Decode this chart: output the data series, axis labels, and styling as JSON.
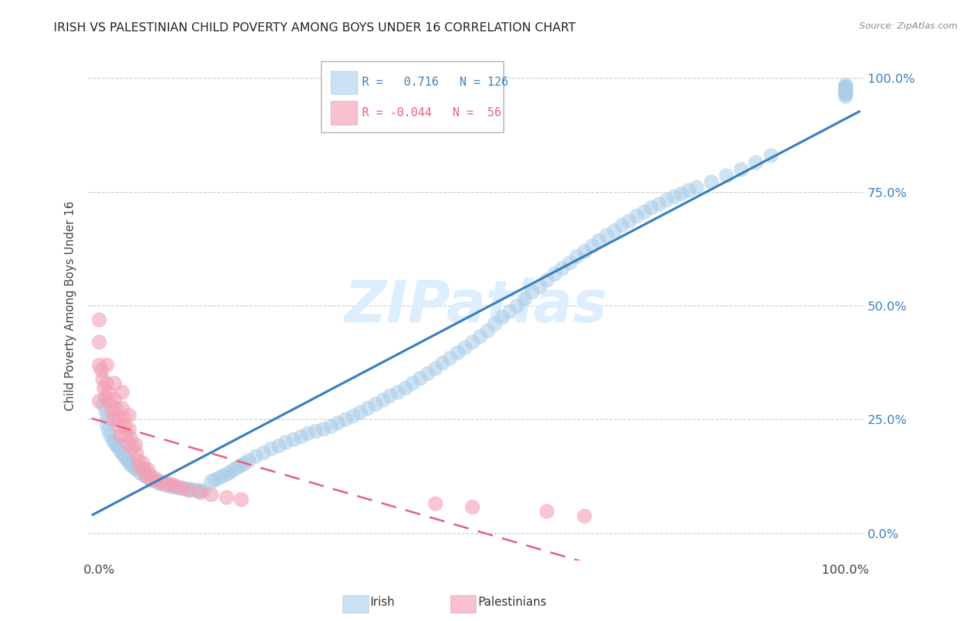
{
  "title": "IRISH VS PALESTINIAN CHILD POVERTY AMONG BOYS UNDER 16 CORRELATION CHART",
  "source": "Source: ZipAtlas.com",
  "ylabel": "Child Poverty Among Boys Under 16",
  "ytick_labels": [
    "0.0%",
    "25.0%",
    "50.0%",
    "75.0%",
    "100.0%"
  ],
  "ytick_values": [
    0.0,
    0.25,
    0.5,
    0.75,
    1.0
  ],
  "xtick_labels": [
    "0.0%",
    "100.0%"
  ],
  "xtick_values": [
    0.0,
    1.0
  ],
  "irish_R": 0.716,
  "irish_N": 126,
  "palest_R": -0.044,
  "palest_N": 56,
  "watermark": "ZIPatlas",
  "irish_color": "#aacde8",
  "palest_color": "#f4a0b5",
  "irish_line_color": "#3a80c0",
  "palest_line_color": "#e8607a",
  "legend_label_irish": "Irish",
  "legend_label_palest": "Palestinians",
  "background_color": "#ffffff",
  "irish_x": [
    0.005,
    0.008,
    0.01,
    0.01,
    0.012,
    0.015,
    0.018,
    0.02,
    0.022,
    0.025,
    0.028,
    0.03,
    0.032,
    0.035,
    0.038,
    0.04,
    0.042,
    0.045,
    0.048,
    0.05,
    0.055,
    0.06,
    0.065,
    0.07,
    0.075,
    0.08,
    0.085,
    0.09,
    0.095,
    0.1,
    0.105,
    0.11,
    0.115,
    0.12,
    0.125,
    0.13,
    0.135,
    0.14,
    0.15,
    0.155,
    0.16,
    0.165,
    0.17,
    0.175,
    0.18,
    0.185,
    0.19,
    0.195,
    0.2,
    0.21,
    0.22,
    0.23,
    0.24,
    0.25,
    0.26,
    0.27,
    0.28,
    0.29,
    0.3,
    0.31,
    0.32,
    0.33,
    0.34,
    0.35,
    0.36,
    0.37,
    0.38,
    0.39,
    0.4,
    0.41,
    0.42,
    0.43,
    0.44,
    0.45,
    0.46,
    0.47,
    0.48,
    0.49,
    0.5,
    0.51,
    0.52,
    0.53,
    0.54,
    0.55,
    0.56,
    0.57,
    0.58,
    0.59,
    0.6,
    0.61,
    0.62,
    0.63,
    0.64,
    0.65,
    0.66,
    0.67,
    0.68,
    0.69,
    0.7,
    0.71,
    0.72,
    0.73,
    0.74,
    0.75,
    0.76,
    0.77,
    0.78,
    0.79,
    0.8,
    0.82,
    0.84,
    0.86,
    0.88,
    0.9,
    1.0,
    1.0,
    1.0,
    1.0,
    1.0,
    1.0,
    1.0,
    1.0,
    1.0,
    1.0,
    1.0,
    1.0
  ],
  "irish_y": [
    0.285,
    0.27,
    0.255,
    0.24,
    0.228,
    0.215,
    0.205,
    0.2,
    0.195,
    0.19,
    0.183,
    0.178,
    0.172,
    0.167,
    0.161,
    0.157,
    0.152,
    0.147,
    0.143,
    0.14,
    0.133,
    0.127,
    0.122,
    0.118,
    0.114,
    0.11,
    0.108,
    0.106,
    0.104,
    0.102,
    0.1,
    0.099,
    0.098,
    0.097,
    0.096,
    0.095,
    0.094,
    0.093,
    0.115,
    0.118,
    0.122,
    0.126,
    0.13,
    0.135,
    0.14,
    0.145,
    0.15,
    0.155,
    0.16,
    0.17,
    0.178,
    0.186,
    0.193,
    0.2,
    0.207,
    0.213,
    0.22,
    0.225,
    0.23,
    0.236,
    0.243,
    0.25,
    0.258,
    0.266,
    0.275,
    0.284,
    0.293,
    0.302,
    0.311,
    0.32,
    0.33,
    0.341,
    0.352,
    0.363,
    0.374,
    0.385,
    0.397,
    0.409,
    0.421,
    0.433,
    0.445,
    0.46,
    0.475,
    0.488,
    0.5,
    0.515,
    0.53,
    0.543,
    0.556,
    0.57,
    0.582,
    0.595,
    0.608,
    0.62,
    0.632,
    0.644,
    0.655,
    0.666,
    0.677,
    0.687,
    0.697,
    0.707,
    0.716,
    0.724,
    0.732,
    0.74,
    0.747,
    0.754,
    0.76,
    0.773,
    0.786,
    0.8,
    0.815,
    0.83,
    0.96,
    0.97,
    0.975,
    0.98,
    0.985,
    0.97,
    0.965,
    0.975,
    0.968,
    0.978,
    0.972,
    0.982
  ],
  "palest_x": [
    0.0,
    0.0,
    0.0,
    0.0,
    0.002,
    0.004,
    0.006,
    0.008,
    0.01,
    0.01,
    0.012,
    0.014,
    0.016,
    0.018,
    0.02,
    0.02,
    0.022,
    0.024,
    0.026,
    0.028,
    0.03,
    0.03,
    0.032,
    0.034,
    0.036,
    0.038,
    0.04,
    0.04,
    0.042,
    0.044,
    0.048,
    0.05,
    0.052,
    0.054,
    0.058,
    0.06,
    0.062,
    0.065,
    0.068,
    0.07,
    0.075,
    0.08,
    0.085,
    0.09,
    0.095,
    0.1,
    0.11,
    0.12,
    0.135,
    0.15,
    0.17,
    0.19,
    0.45,
    0.5,
    0.6,
    0.65
  ],
  "palest_y": [
    0.47,
    0.42,
    0.37,
    0.29,
    0.36,
    0.34,
    0.32,
    0.3,
    0.37,
    0.33,
    0.31,
    0.29,
    0.27,
    0.25,
    0.33,
    0.295,
    0.275,
    0.255,
    0.235,
    0.215,
    0.31,
    0.275,
    0.255,
    0.235,
    0.215,
    0.195,
    0.26,
    0.23,
    0.21,
    0.19,
    0.195,
    0.175,
    0.16,
    0.145,
    0.155,
    0.14,
    0.128,
    0.14,
    0.128,
    0.118,
    0.12,
    0.115,
    0.112,
    0.11,
    0.108,
    0.106,
    0.1,
    0.095,
    0.09,
    0.085,
    0.08,
    0.075,
    0.065,
    0.058,
    0.048,
    0.038
  ]
}
